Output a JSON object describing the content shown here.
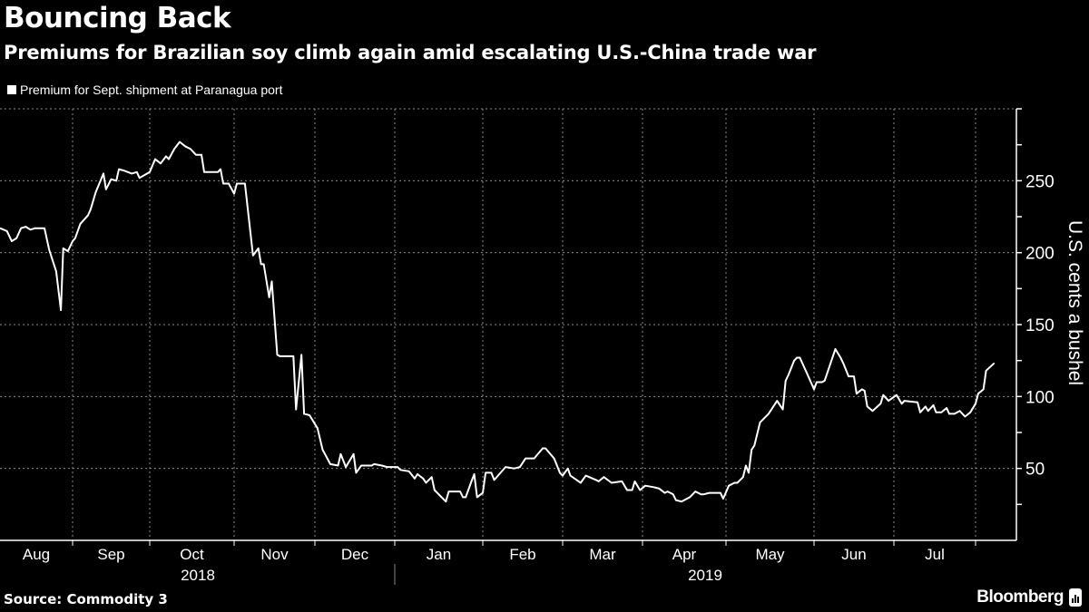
{
  "header": {
    "title": "Bouncing Back",
    "subtitle": "Premiums for Brazilian soy climb again amid escalating U.S.-China trade war"
  },
  "footer": {
    "source": "Source: Commodity 3",
    "brand": "Bloomberg"
  },
  "colors": {
    "background": "#000000",
    "line": "#ffffff",
    "grid": "#8a8a8a"
  },
  "chart_data": {
    "type": "line",
    "title": "Bouncing Back",
    "subtitle": "Premiums for Brazilian soy climb again amid escalating U.S.-China trade war",
    "xlabel": "",
    "ylabel": "U.S. cents a bushel",
    "ylim": [
      0,
      300
    ],
    "y_ticks": [
      50,
      100,
      150,
      200,
      250
    ],
    "y_axis_side": "right",
    "grid": true,
    "legend_position": "top-left",
    "x_tick_labels": [
      "Aug",
      "Sep",
      "Oct",
      "Nov",
      "Dec",
      "Jan",
      "Feb",
      "Mar",
      "Apr",
      "May",
      "Jun",
      "Jul"
    ],
    "x_year_labels": [
      "2018",
      "2019"
    ],
    "series": [
      {
        "name": "Premium for Sept. shipment at Paranagua port",
        "x": [
          "2018-08-01",
          "2018-08-04",
          "2018-08-06",
          "2018-08-08",
          "2018-08-10",
          "2018-08-12",
          "2018-08-14",
          "2018-08-16",
          "2018-08-20",
          "2018-08-22",
          "2018-08-25",
          "2018-08-27",
          "2018-08-28",
          "2018-08-30",
          "2018-09-01",
          "2018-09-02",
          "2018-09-04",
          "2018-09-07",
          "2018-09-08",
          "2018-09-10",
          "2018-09-13",
          "2018-09-14",
          "2018-09-16",
          "2018-09-18",
          "2018-09-19",
          "2018-09-21",
          "2018-09-24",
          "2018-09-26",
          "2018-09-27",
          "2018-10-01",
          "2018-10-03",
          "2018-10-05",
          "2018-10-07",
          "2018-10-08",
          "2018-10-10",
          "2018-10-12",
          "2018-10-14",
          "2018-10-16",
          "2018-10-18",
          "2018-10-20",
          "2018-10-21",
          "2018-10-26",
          "2018-10-27",
          "2018-10-28",
          "2018-10-30",
          "2018-11-01",
          "2018-11-02",
          "2018-11-05",
          "2018-11-08",
          "2018-11-10",
          "2018-11-11",
          "2018-11-12",
          "2018-11-14",
          "2018-11-15",
          "2018-11-17",
          "2018-11-18",
          "2018-11-23",
          "2018-11-24",
          "2018-11-26",
          "2018-11-27",
          "2018-11-29",
          "2018-12-02",
          "2018-12-04",
          "2018-12-07",
          "2018-12-10",
          "2018-12-11",
          "2018-12-13",
          "2018-12-16",
          "2018-12-17",
          "2018-12-19",
          "2018-12-23",
          "2018-12-24",
          "2018-12-27",
          "2018-12-29",
          "2019-01-02",
          "2019-01-03",
          "2019-01-06",
          "2019-01-08",
          "2019-01-09",
          "2019-01-11",
          "2019-01-12",
          "2019-01-14",
          "2019-01-15",
          "2019-01-19",
          "2019-01-20",
          "2019-01-24",
          "2019-01-25",
          "2019-01-26",
          "2019-01-28",
          "2019-01-29",
          "2019-01-30",
          "2019-02-01",
          "2019-02-02",
          "2019-02-04",
          "2019-02-05",
          "2019-02-09",
          "2019-02-12",
          "2019-02-14",
          "2019-02-16",
          "2019-02-19",
          "2019-02-22",
          "2019-02-23",
          "2019-02-26",
          "2019-02-28",
          "2019-03-01",
          "2019-03-03",
          "2019-03-04",
          "2019-03-08",
          "2019-03-10",
          "2019-03-14",
          "2019-03-15",
          "2019-03-17",
          "2019-03-20",
          "2019-03-24",
          "2019-03-26",
          "2019-03-28",
          "2019-03-29",
          "2019-03-31",
          "2019-04-02",
          "2019-04-05",
          "2019-04-07",
          "2019-04-09",
          "2019-04-10",
          "2019-04-12",
          "2019-04-13",
          "2019-04-15",
          "2019-04-18",
          "2019-04-20",
          "2019-04-22",
          "2019-04-23",
          "2019-04-25",
          "2019-04-29",
          "2019-04-30",
          "2019-05-02",
          "2019-05-04",
          "2019-05-05",
          "2019-05-07",
          "2019-05-08",
          "2019-05-09",
          "2019-05-10",
          "2019-05-11",
          "2019-05-13",
          "2019-05-16",
          "2019-05-19",
          "2019-05-21",
          "2019-05-22",
          "2019-05-23",
          "2019-05-25",
          "2019-05-26",
          "2019-05-27",
          "2019-05-30",
          "2019-06-01",
          "2019-06-02",
          "2019-06-04",
          "2019-06-05",
          "2019-06-07",
          "2019-06-09",
          "2019-06-11",
          "2019-06-12",
          "2019-06-14",
          "2019-06-16",
          "2019-06-17",
          "2019-06-19",
          "2019-06-20",
          "2019-06-21",
          "2019-06-23",
          "2019-06-26",
          "2019-06-27",
          "2019-06-29",
          "2019-07-02",
          "2019-07-04",
          "2019-07-05",
          "2019-07-10",
          "2019-07-11",
          "2019-07-13",
          "2019-07-14",
          "2019-07-16",
          "2019-07-17",
          "2019-07-19",
          "2019-07-21",
          "2019-07-22",
          "2019-07-24",
          "2019-07-26",
          "2019-07-28",
          "2019-07-30",
          "2019-08-01",
          "2019-08-02",
          "2019-08-04",
          "2019-08-05",
          "2019-08-08"
        ],
        "y": [
          217,
          215,
          208,
          210,
          217,
          218,
          216,
          217,
          217,
          202,
          187,
          160,
          203,
          201,
          208,
          210,
          220,
          226,
          230,
          242,
          255,
          244,
          251,
          250,
          258,
          257,
          255,
          256,
          252,
          256,
          265,
          262,
          267,
          265,
          272,
          277,
          274,
          272,
          268,
          268,
          256,
          256,
          258,
          248,
          248,
          241,
          248,
          248,
          198,
          203,
          192,
          192,
          169,
          180,
          129,
          128,
          128,
          91,
          129,
          88,
          87,
          78,
          63,
          53,
          52,
          60,
          51,
          60,
          47,
          52,
          52,
          53,
          52,
          51,
          51,
          49,
          48,
          43,
          46,
          43,
          40,
          44,
          35,
          27,
          34,
          34,
          30,
          30,
          41,
          46,
          30,
          33,
          47,
          47,
          42,
          51,
          50,
          51,
          57,
          57,
          64,
          64,
          57,
          47,
          45,
          50,
          45,
          40,
          45,
          42,
          41,
          44,
          40,
          41,
          35,
          35,
          41,
          35,
          38,
          37,
          36,
          33,
          34,
          32,
          28,
          27,
          30,
          34,
          32,
          32,
          33,
          33,
          29,
          38,
          40,
          40,
          44,
          52,
          47,
          63,
          66,
          82,
          88,
          97,
          91,
          111,
          115,
          125,
          127,
          127,
          114,
          105,
          110,
          110,
          111,
          122,
          133,
          127,
          123,
          114,
          114,
          102,
          105,
          104,
          93,
          90,
          95,
          101,
          97,
          101,
          95,
          97,
          96,
          89,
          93,
          90,
          94,
          89,
          89,
          92,
          88,
          88,
          90,
          86,
          89,
          95,
          102,
          105,
          118,
          123
        ]
      }
    ]
  }
}
